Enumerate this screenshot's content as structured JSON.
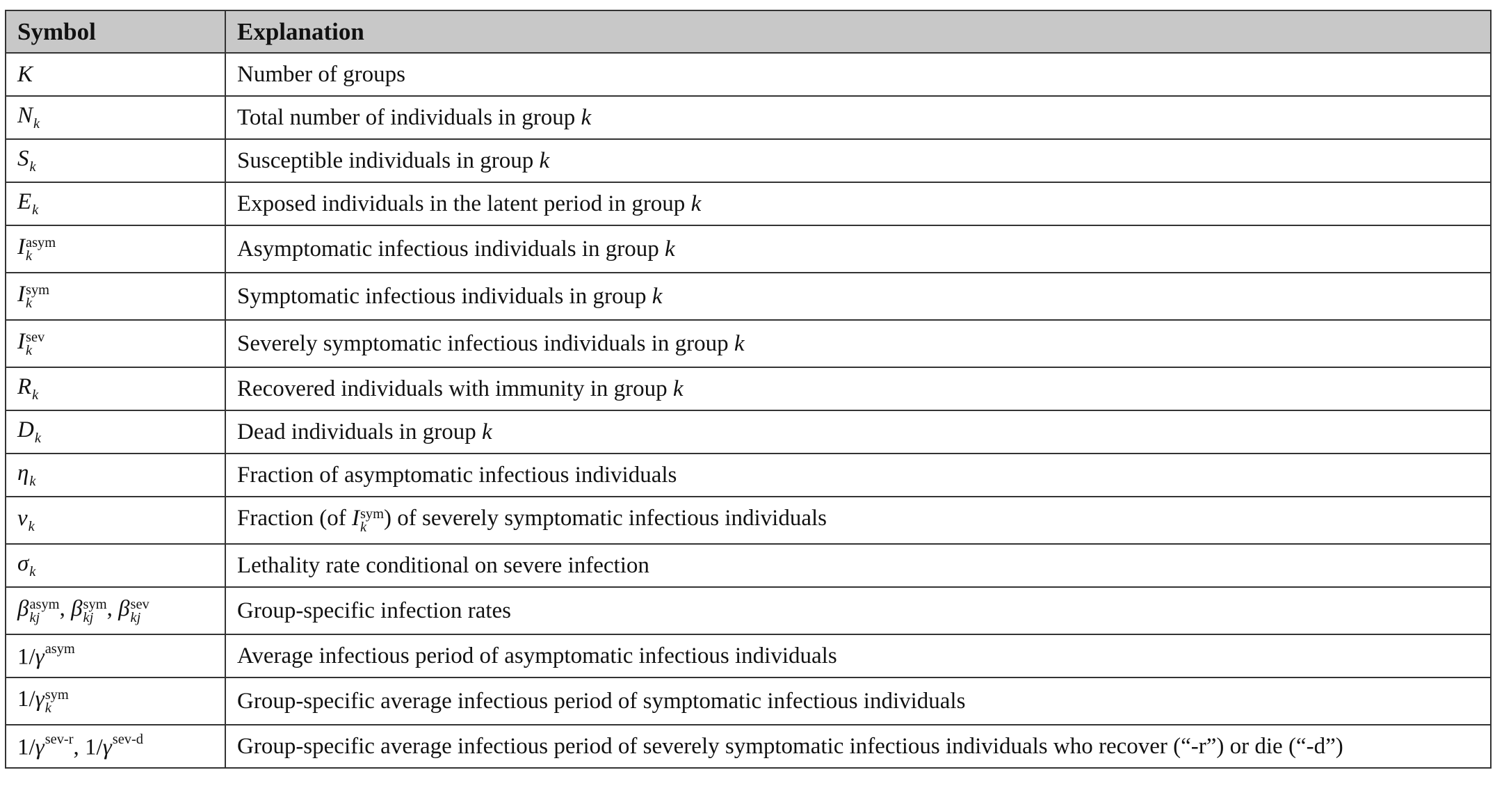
{
  "header": {
    "symbol": "Symbol",
    "explanation": "Explanation"
  },
  "rows": [
    {
      "symbol": {
        "base": "K"
      },
      "explanation": {
        "text": "Number of groups"
      }
    },
    {
      "symbol": {
        "base": "N",
        "sub": "k"
      },
      "explanation": {
        "text": "Total number of individuals in group ",
        "var": "k"
      }
    },
    {
      "symbol": {
        "base": "S",
        "sub": "k"
      },
      "explanation": {
        "text": "Susceptible individuals in group ",
        "var": "k"
      }
    },
    {
      "symbol": {
        "base": "E",
        "sub": "k"
      },
      "explanation": {
        "text": "Exposed individuals in the latent period in group ",
        "var": "k"
      }
    },
    {
      "symbol": {
        "base": "I",
        "sup": "asym",
        "sub": "k"
      },
      "explanation": {
        "text": "Asymptomatic infectious individuals in group ",
        "var": "k"
      }
    },
    {
      "symbol": {
        "base": "I",
        "sup": "sym",
        "sub": "k"
      },
      "explanation": {
        "text": "Symptomatic infectious individuals in group ",
        "var": "k"
      }
    },
    {
      "symbol": {
        "base": "I",
        "sup": "sev",
        "sub": "k"
      },
      "explanation": {
        "text": "Severely symptomatic infectious individuals in group ",
        "var": "k"
      }
    },
    {
      "symbol": {
        "base": "R",
        "sub": "k"
      },
      "explanation": {
        "text": "Recovered individuals with immunity in group ",
        "var": "k"
      }
    },
    {
      "symbol": {
        "base": "D",
        "sub": "k"
      },
      "explanation": {
        "text": "Dead individuals in group ",
        "var": "k"
      }
    },
    {
      "symbol": {
        "base": "η",
        "sub": "k"
      },
      "explanation": {
        "text": "Fraction of asymptomatic infectious individuals"
      }
    },
    {
      "symbol": {
        "base": "ν",
        "sub": "k"
      },
      "explanation": {
        "pre": "Fraction (of ",
        "inline_base": "I",
        "inline_sup": "sym",
        "inline_sub": "k",
        "post": ") of severely symptomatic  infectious individuals"
      }
    },
    {
      "symbol": {
        "base": "σ",
        "sub": "k"
      },
      "explanation": {
        "text": "Lethality rate conditional on severe infection"
      }
    },
    {
      "symbol": {
        "base": "β",
        "sup1": "asym",
        "sub1": "kj",
        "sep1": ", ",
        "base2": "β",
        "sup2": "sym",
        "sub2": "kj",
        "sep2": ", ",
        "base3": "β",
        "sup3": "sev",
        "sub3": "kj"
      },
      "explanation": {
        "text": "Group-specific infection rates"
      }
    },
    {
      "symbol": {
        "prefix": "1/",
        "base": "γ",
        "sup": "asym"
      },
      "explanation": {
        "text": "Average infectious period  of asymptomatic infectious individuals"
      }
    },
    {
      "symbol": {
        "prefix": "1/",
        "base": "γ",
        "sup": "sym",
        "sub": "k"
      },
      "explanation": {
        "text": "Group-specific average infectious period   of symptomatic infectious individuals"
      }
    },
    {
      "symbol": {
        "prefix": "1/",
        "base": "γ",
        "sup": "sev-r",
        "sep": ", ",
        "prefix2": "1/",
        "base2": "γ",
        "sup2": "sev-d"
      },
      "explanation": {
        "text": "Group-specific average infectious period  of severely symptomatic infectious individuals  who recover (“-r”) or die (“-d”)"
      }
    }
  ]
}
